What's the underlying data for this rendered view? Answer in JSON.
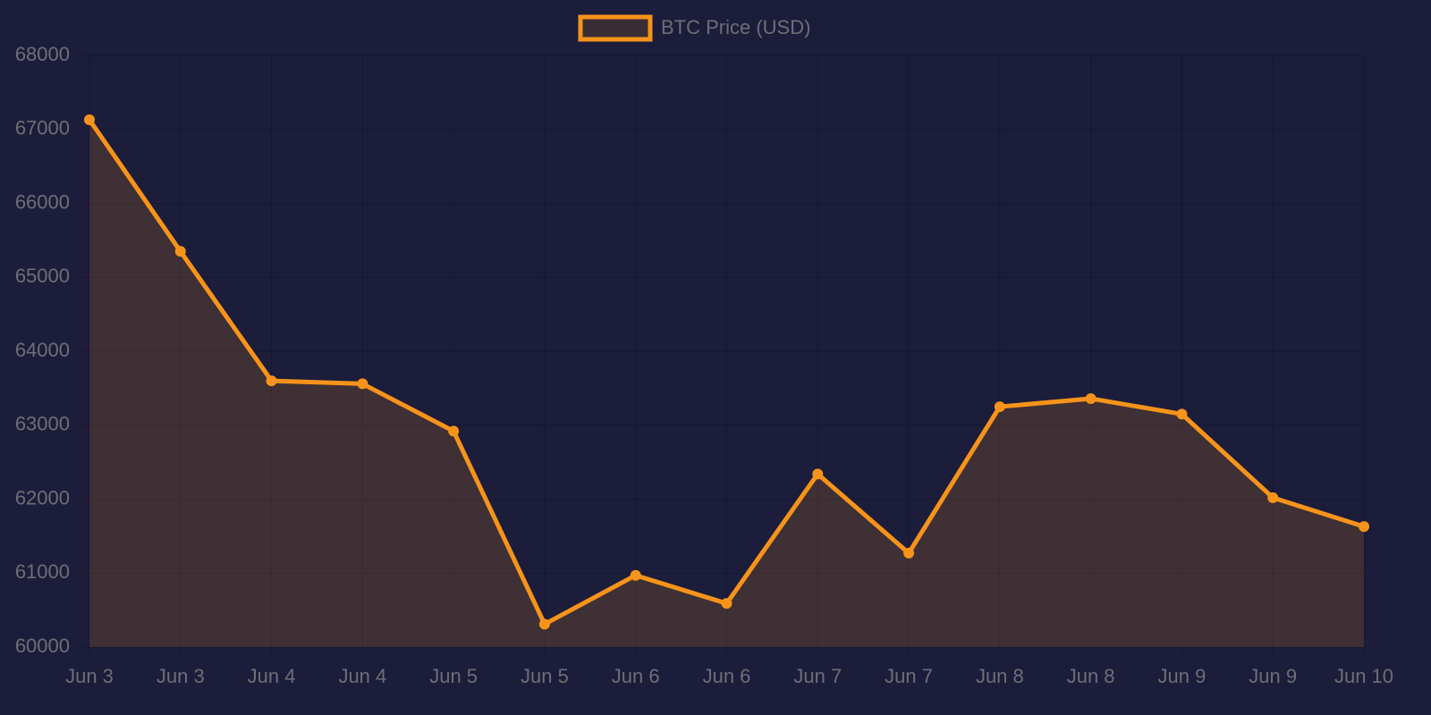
{
  "chart_data": {
    "type": "line",
    "categories": [
      "Jun 3",
      "Jun 3",
      "Jun 4",
      "Jun 4",
      "Jun 5",
      "Jun 5",
      "Jun 6",
      "Jun 6",
      "Jun 7",
      "Jun 7",
      "Jun 8",
      "Jun 8",
      "Jun 9",
      "Jun 9",
      "Jun 10"
    ],
    "series": [
      {
        "name": "BTC Price (USD)",
        "color": "#f7931a",
        "values": [
          67130,
          65350,
          63600,
          63560,
          62920,
          60310,
          60970,
          60590,
          62340,
          61270,
          63250,
          63360,
          63150,
          62020,
          61630
        ]
      }
    ],
    "ylim": [
      60000,
      68000
    ],
    "yticks": [
      60000,
      61000,
      62000,
      63000,
      64000,
      65000,
      66000,
      67000,
      68000
    ],
    "grid": true,
    "fill": true,
    "legend": "top"
  }
}
